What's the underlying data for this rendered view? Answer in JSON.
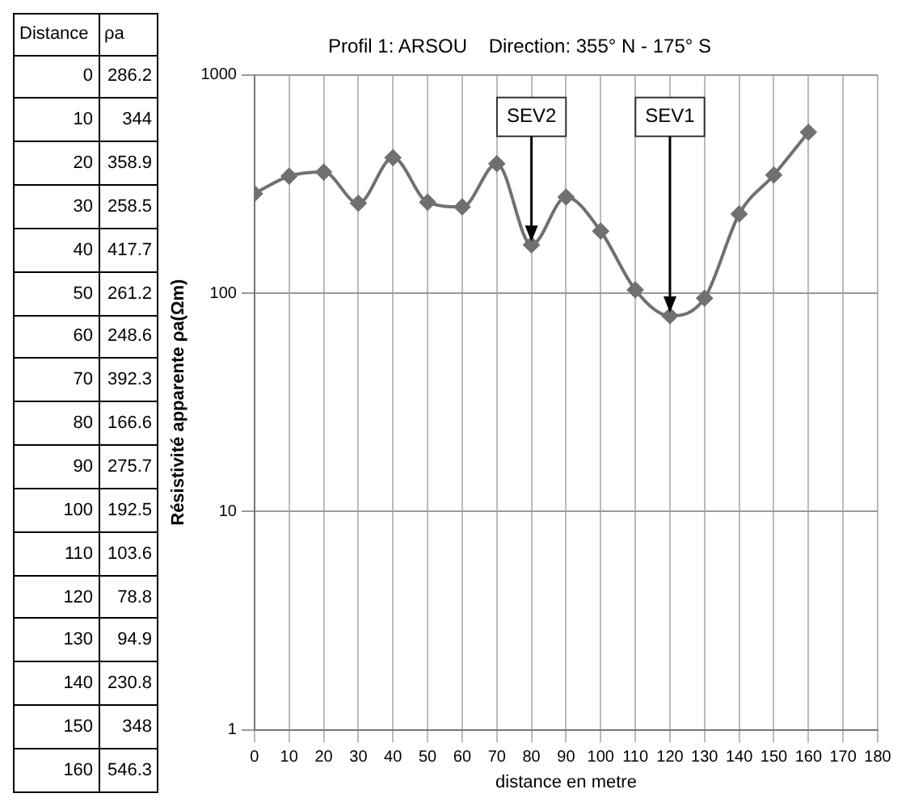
{
  "chart_data": [
    {
      "type": "heatmap",
      "data_labels": true,
      "ylabel": "Distance",
      "categories": [
        "ρa"
      ],
      "y_categories": [
        "0",
        "10",
        "20",
        "30",
        "40",
        "50",
        "60",
        "70",
        "80",
        "90",
        "100",
        "110",
        "120",
        "130",
        "140",
        "150",
        "160"
      ],
      "cells": [
        [
          286.2
        ],
        [
          344
        ],
        [
          358.9
        ],
        [
          258.5
        ],
        [
          417.7
        ],
        [
          261.2
        ],
        [
          248.6
        ],
        [
          392.3
        ],
        [
          166.6
        ],
        [
          275.7
        ],
        [
          192.5
        ],
        [
          103.6
        ],
        [
          78.8
        ],
        [
          94.9
        ],
        [
          230.8
        ],
        [
          348
        ],
        [
          546.3
        ]
      ]
    },
    {
      "type": "line",
      "title": "Profil 1: ARSOU    Direction: 355° N - 175° S",
      "xlabel": "distance en metre",
      "ylabel": "Résistivité apparente ρa(Ωm)",
      "x": [
        0,
        10,
        20,
        30,
        40,
        50,
        60,
        70,
        80,
        90,
        100,
        110,
        120,
        130,
        140,
        150,
        160
      ],
      "series": [
        {
          "color": "#707070",
          "values": [
            286.2,
            344,
            358.9,
            258.5,
            417.7,
            261.2,
            248.6,
            392.3,
            166.6,
            275.7,
            192.5,
            103.6,
            78.8,
            94.9,
            230.8,
            348,
            546.3
          ]
        }
      ],
      "xlim": [
        0,
        180
      ],
      "xticks": [
        0,
        10,
        20,
        30,
        40,
        50,
        60,
        70,
        80,
        90,
        100,
        110,
        120,
        130,
        140,
        150,
        160,
        170,
        180
      ],
      "ylim": [
        1,
        1000
      ],
      "yticks": [
        1,
        10,
        100,
        1000
      ],
      "log": "y",
      "grid": true,
      "marker": "diamond",
      "line_style": "solid",
      "annotations": [
        {
          "text": "SEV2",
          "x": 80,
          "y": 166.6
        },
        {
          "text": "SEV1",
          "x": 120,
          "y": 78.8
        }
      ]
    }
  ]
}
